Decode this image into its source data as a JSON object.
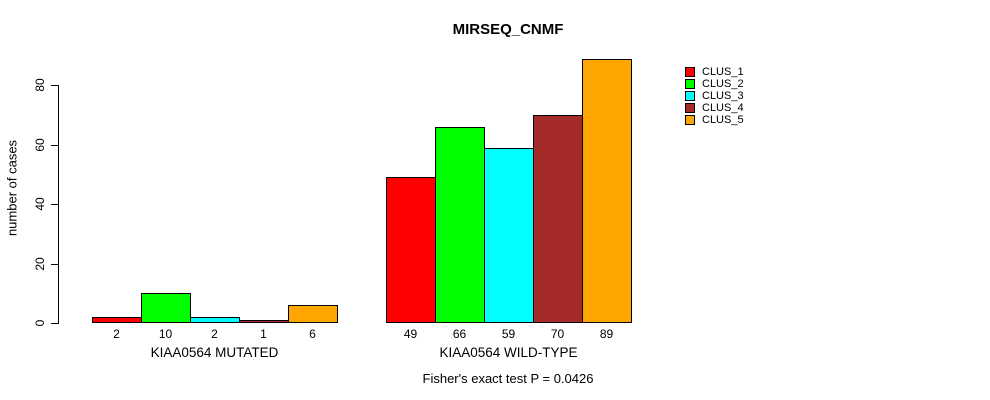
{
  "chart_data": {
    "type": "bar",
    "title": "MIRSEQ_CNMF",
    "ylabel": "number of cases",
    "xlabel": "",
    "categories": [
      "KIAA0564 MUTATED",
      "KIAA0564 WILD-TYPE"
    ],
    "series": [
      {
        "name": "CLUS_1",
        "color": "#FF0000",
        "values": [
          2,
          49
        ]
      },
      {
        "name": "CLUS_2",
        "color": "#00FF00",
        "values": [
          10,
          66
        ]
      },
      {
        "name": "CLUS_3",
        "color": "#00FFFF",
        "values": [
          2,
          59
        ]
      },
      {
        "name": "CLUS_4",
        "color": "#A52A2A",
        "values": [
          1,
          70
        ]
      },
      {
        "name": "CLUS_5",
        "color": "#FFA500",
        "values": [
          6,
          89
        ]
      }
    ],
    "yticks": [
      0,
      20,
      40,
      60,
      80
    ],
    "ylim": [
      0,
      89
    ],
    "grid": false,
    "bar_value_labels": true,
    "legend_position": "right",
    "footnote": "Fisher's exact test P = 0.0426"
  }
}
